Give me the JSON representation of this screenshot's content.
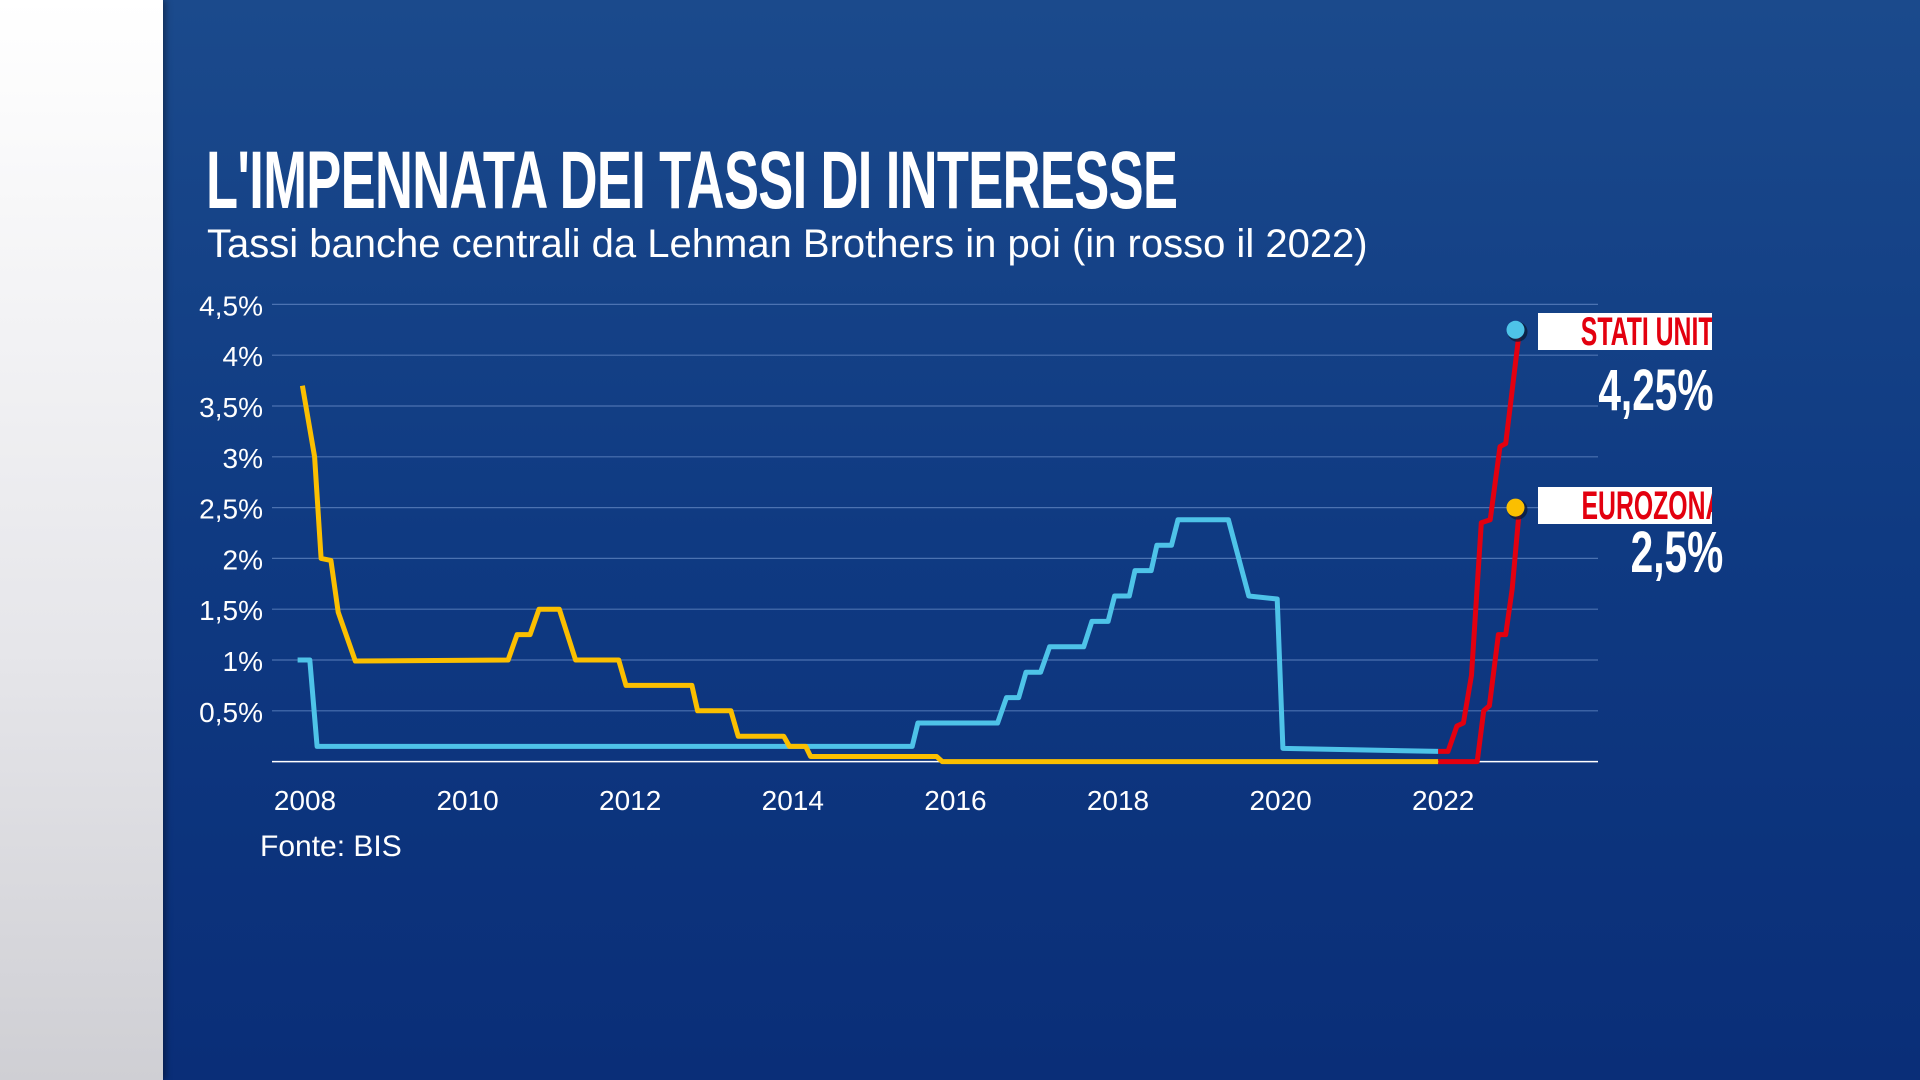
{
  "title": "L'IMPENNATA DEI TASSI DI INTERESSE",
  "subtitle": "Tassi banche centrali da Lehman Brothers in poi (in rosso il 2022)",
  "source": "Fonte: BIS",
  "labels": {
    "us": {
      "name": "STATI UNITI",
      "value": "4,25%"
    },
    "ez": {
      "name": "EUROZONA",
      "value": "2,5%"
    }
  },
  "colors": {
    "us": "#4ec3e8",
    "ez": "#fbbf00",
    "highlight_2022": "#e3000f",
    "label_text": "#e3000f"
  },
  "chart_data": {
    "type": "line",
    "title": "L'IMPENNATA DEI TASSI DI INTERESSE",
    "subtitle": "Tassi banche centrali da Lehman Brothers in poi (in rosso il 2022)",
    "xlabel": "",
    "ylabel": "",
    "xlim": [
      2008,
      2023
    ],
    "ylim": [
      0,
      4.5
    ],
    "x_ticks": [
      "2008",
      "2010",
      "2012",
      "2014",
      "2016",
      "2018",
      "2020",
      "2022"
    ],
    "y_ticks": [
      {
        "value": 0.5,
        "label": "0,5%"
      },
      {
        "value": 1,
        "label": "1%"
      },
      {
        "value": 1.5,
        "label": "1,5%"
      },
      {
        "value": 2,
        "label": "2%"
      },
      {
        "value": 2.5,
        "label": "2,5%"
      },
      {
        "value": 3,
        "label": "3%"
      },
      {
        "value": 3.5,
        "label": "3,5%"
      },
      {
        "value": 4,
        "label": "4%"
      },
      {
        "value": 4.5,
        "label": "4,5%"
      }
    ],
    "grid": true,
    "highlight": "2022 segments drawn in red",
    "series": [
      {
        "name": "STATI UNITI",
        "color": "#4ec3e8",
        "end_value_label": "4,25%",
        "points": [
          [
            2007.97,
            1.0
          ],
          [
            2008.12,
            1.0
          ],
          [
            2008.21,
            0.15
          ],
          [
            2015.53,
            0.15
          ],
          [
            2015.6,
            0.38
          ],
          [
            2016.58,
            0.38
          ],
          [
            2016.69,
            0.63
          ],
          [
            2016.84,
            0.63
          ],
          [
            2016.93,
            0.88
          ],
          [
            2017.11,
            0.88
          ],
          [
            2017.22,
            1.13
          ],
          [
            2017.64,
            1.13
          ],
          [
            2017.74,
            1.38
          ],
          [
            2017.94,
            1.38
          ],
          [
            2018.02,
            1.63
          ],
          [
            2018.2,
            1.63
          ],
          [
            2018.27,
            1.88
          ],
          [
            2018.47,
            1.88
          ],
          [
            2018.54,
            2.13
          ],
          [
            2018.72,
            2.13
          ],
          [
            2018.8,
            2.38
          ],
          [
            2019.42,
            2.38
          ],
          [
            2019.67,
            1.63
          ],
          [
            2020.02,
            1.6
          ],
          [
            2020.09,
            0.13
          ],
          [
            2022.0,
            0.1
          ]
        ],
        "points_2022": [
          [
            2022.0,
            0.1
          ],
          [
            2022.12,
            0.1
          ],
          [
            2022.23,
            0.35
          ],
          [
            2022.31,
            0.38
          ],
          [
            2022.41,
            0.85
          ],
          [
            2022.53,
            2.35
          ],
          [
            2022.64,
            2.38
          ],
          [
            2022.76,
            3.1
          ],
          [
            2022.83,
            3.13
          ],
          [
            2023.0,
            4.25
          ]
        ]
      },
      {
        "name": "EUROZONA",
        "color": "#fbbf00",
        "end_value_label": "2,5%",
        "points": [
          [
            2008.03,
            3.7
          ],
          [
            2008.18,
            3.0
          ],
          [
            2008.26,
            2.0
          ],
          [
            2008.38,
            1.98
          ],
          [
            2008.47,
            1.47
          ],
          [
            2008.68,
            0.99
          ],
          [
            2010.56,
            1.0
          ],
          [
            2010.67,
            1.25
          ],
          [
            2010.83,
            1.25
          ],
          [
            2010.94,
            1.5
          ],
          [
            2011.19,
            1.5
          ],
          [
            2011.39,
            1.0
          ],
          [
            2011.92,
            1.0
          ],
          [
            2012.01,
            0.75
          ],
          [
            2012.82,
            0.75
          ],
          [
            2012.89,
            0.5
          ],
          [
            2013.3,
            0.5
          ],
          [
            2013.39,
            0.25
          ],
          [
            2013.95,
            0.25
          ],
          [
            2014.02,
            0.15
          ],
          [
            2014.22,
            0.15
          ],
          [
            2014.28,
            0.05
          ],
          [
            2015.83,
            0.05
          ],
          [
            2015.9,
            0.0
          ],
          [
            2022.0,
            0.0
          ]
        ],
        "points_2022": [
          [
            2022.0,
            0.0
          ],
          [
            2022.48,
            0.0
          ],
          [
            2022.56,
            0.5
          ],
          [
            2022.63,
            0.55
          ],
          [
            2022.74,
            1.25
          ],
          [
            2022.83,
            1.25
          ],
          [
            2022.91,
            1.7
          ],
          [
            2023.0,
            2.5
          ]
        ]
      }
    ]
  }
}
